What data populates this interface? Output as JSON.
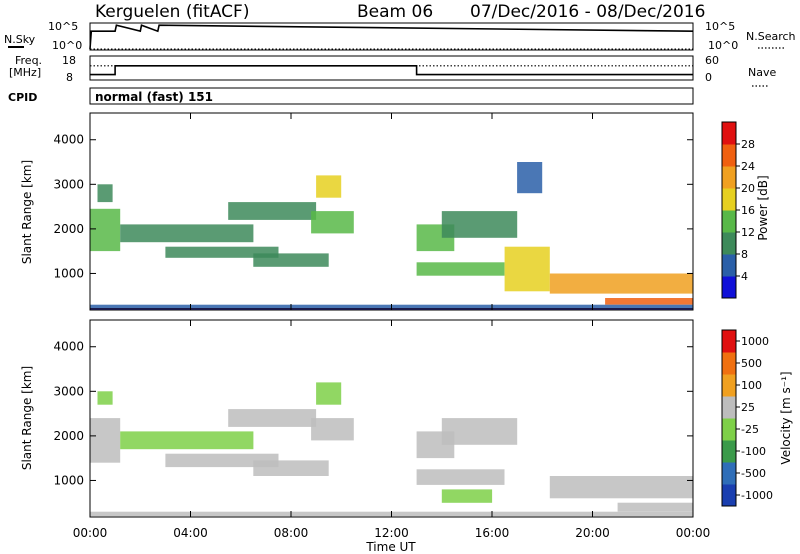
{
  "header": {
    "station": "Kerguelen (fitACF)",
    "beam": "Beam 06",
    "date_range": "07/Dec/2016 - 08/Dec/2016"
  },
  "top_panels": {
    "nsky_label": "N.Sky",
    "nsearch_label": "N.Search",
    "nsky_ticks": [
      "10^5",
      "10^0"
    ],
    "nsearch_ticks": [
      "10^5",
      "10^0"
    ],
    "freq_label_line1": "Freq.",
    "freq_label_line2": "[MHz]",
    "freq_ticks": [
      "18",
      "8"
    ],
    "nave_label": "Nave",
    "nave_ticks": [
      "60",
      "0"
    ],
    "cpid_label": "CPID",
    "cpid_value": "normal (fast) 151"
  },
  "colorbars": {
    "power": {
      "label": "Power [dB]",
      "ticks": [
        "28",
        "24",
        "20",
        "16",
        "12",
        "8",
        "4"
      ],
      "colors": [
        "#1010d8",
        "#2a5fa8",
        "#3d8a5a",
        "#58b848",
        "#e6d020",
        "#f0a020",
        "#f06010",
        "#e01010"
      ]
    },
    "velocity": {
      "label": "Velocity [m s⁻¹]",
      "ticks": [
        "1000",
        "500",
        "100",
        "25",
        "-25",
        "-100",
        "-500",
        "-1000"
      ],
      "colors": [
        "#1a3fb0",
        "#2f6eb8",
        "#3a9a4a",
        "#7ed048",
        "#bdbdbd",
        "#f0a020",
        "#f07010",
        "#e01010"
      ]
    }
  },
  "axes": {
    "ylabel": "Slant Range [km]",
    "xlabel": "Time UT",
    "y_ticks": [
      "4000",
      "3000",
      "2000",
      "1000"
    ],
    "x_ticks": [
      "00:00",
      "04:00",
      "08:00",
      "12:00",
      "16:00",
      "20:00",
      "00:00"
    ]
  },
  "chart_data": [
    {
      "type": "line",
      "title": "N.Sky / N.Search",
      "x_range_hours": [
        0,
        24
      ],
      "y_scale": "log",
      "ylim": [
        1,
        100000
      ],
      "series": [
        {
          "name": "N.Sky",
          "x": [
            0,
            0.05,
            1.0,
            1.05,
            2.0,
            2.05,
            2.7,
            2.75,
            24
          ],
          "y": [
            1,
            5000,
            5000,
            90000,
            5000,
            90000,
            5000,
            90000,
            5000
          ]
        },
        {
          "name": "N.Search",
          "x": [
            0,
            24
          ],
          "y": [
            1,
            1
          ]
        }
      ]
    },
    {
      "type": "line",
      "title": "Freq / Nave",
      "x_range_hours": [
        0,
        24
      ],
      "series": [
        {
          "name": "Freq. [MHz]",
          "ylim": [
            8,
            18
          ],
          "x": [
            0,
            1.0,
            1.0,
            13.0,
            13.0,
            24
          ],
          "y": [
            10,
            10,
            14,
            14,
            10,
            10
          ]
        },
        {
          "name": "Nave",
          "ylim": [
            0,
            60
          ],
          "x": [
            0,
            24
          ],
          "y": [
            36,
            36
          ]
        }
      ]
    },
    {
      "type": "heatmap",
      "title": "Power [dB]",
      "x_range_hours": [
        0,
        24
      ],
      "ylim": [
        180,
        4600
      ],
      "value_range": [
        0,
        30
      ],
      "patches": [
        {
          "t0": 0.0,
          "t1": 1.2,
          "r0": 1500,
          "r1": 2450,
          "v": 14
        },
        {
          "t0": 0.3,
          "t1": 0.9,
          "r0": 2600,
          "r1": 3000,
          "v": 8
        },
        {
          "t0": 1.2,
          "t1": 6.5,
          "r0": 1700,
          "r1": 2100,
          "v": 9
        },
        {
          "t0": 3.0,
          "t1": 7.5,
          "r0": 1350,
          "r1": 1600,
          "v": 10
        },
        {
          "t0": 6.5,
          "t1": 9.5,
          "r0": 1150,
          "r1": 1450,
          "v": 8
        },
        {
          "t0": 5.5,
          "t1": 9.0,
          "r0": 2200,
          "r1": 2600,
          "v": 9
        },
        {
          "t0": 9.0,
          "t1": 10.0,
          "r0": 2700,
          "r1": 3200,
          "v": 18
        },
        {
          "t0": 8.8,
          "t1": 10.5,
          "r0": 1900,
          "r1": 2400,
          "v": 13
        },
        {
          "t0": 13.0,
          "t1": 14.5,
          "r0": 1500,
          "r1": 2100,
          "v": 14
        },
        {
          "t0": 14.0,
          "t1": 17.0,
          "r0": 1800,
          "r1": 2400,
          "v": 11
        },
        {
          "t0": 13.0,
          "t1": 16.5,
          "r0": 950,
          "r1": 1250,
          "v": 12
        },
        {
          "t0": 16.5,
          "t1": 18.3,
          "r0": 600,
          "r1": 1600,
          "v": 18
        },
        {
          "t0": 17.0,
          "t1": 18.0,
          "r0": 2800,
          "r1": 3500,
          "v": 6
        },
        {
          "t0": 18.3,
          "t1": 24.0,
          "r0": 550,
          "r1": 1000,
          "v": 22
        },
        {
          "t0": 20.5,
          "t1": 24.0,
          "r0": 300,
          "r1": 450,
          "v": 26
        },
        {
          "t0": 0.0,
          "t1": 24.0,
          "r0": 200,
          "r1": 300,
          "v": 6
        }
      ]
    },
    {
      "type": "heatmap",
      "title": "Velocity [m s-1]",
      "x_range_hours": [
        0,
        24
      ],
      "ylim": [
        180,
        4600
      ],
      "value_range": [
        -1000,
        1000
      ],
      "patches": [
        {
          "t0": 0.0,
          "t1": 1.2,
          "r0": 1400,
          "r1": 2400,
          "v": 60
        },
        {
          "t0": 0.3,
          "t1": 0.9,
          "r0": 2700,
          "r1": 3000,
          "v": -40
        },
        {
          "t0": 1.2,
          "t1": 6.5,
          "r0": 1700,
          "r1": 2100,
          "v": -60
        },
        {
          "t0": 3.0,
          "t1": 7.5,
          "r0": 1300,
          "r1": 1600,
          "v": 0
        },
        {
          "t0": 6.5,
          "t1": 9.5,
          "r0": 1100,
          "r1": 1450,
          "v": 0
        },
        {
          "t0": 5.5,
          "t1": 9.0,
          "r0": 2200,
          "r1": 2600,
          "v": 0
        },
        {
          "t0": 9.0,
          "t1": 10.0,
          "r0": 2700,
          "r1": 3200,
          "v": -150
        },
        {
          "t0": 8.8,
          "t1": 10.5,
          "r0": 1900,
          "r1": 2400,
          "v": 0
        },
        {
          "t0": 13.0,
          "t1": 14.5,
          "r0": 1500,
          "r1": 2100,
          "v": 0
        },
        {
          "t0": 14.0,
          "t1": 17.0,
          "r0": 1800,
          "r1": 2400,
          "v": 0
        },
        {
          "t0": 13.0,
          "t1": 16.5,
          "r0": 900,
          "r1": 1250,
          "v": 0
        },
        {
          "t0": 14.0,
          "t1": 16.0,
          "r0": 500,
          "r1": 800,
          "v": -120
        },
        {
          "t0": 18.3,
          "t1": 24.0,
          "r0": 600,
          "r1": 1100,
          "v": 0
        },
        {
          "t0": 21.0,
          "t1": 24.0,
          "r0": 300,
          "r1": 500,
          "v": 70
        },
        {
          "t0": 0.0,
          "t1": 24.0,
          "r0": 200,
          "r1": 300,
          "v": 0
        }
      ]
    }
  ]
}
